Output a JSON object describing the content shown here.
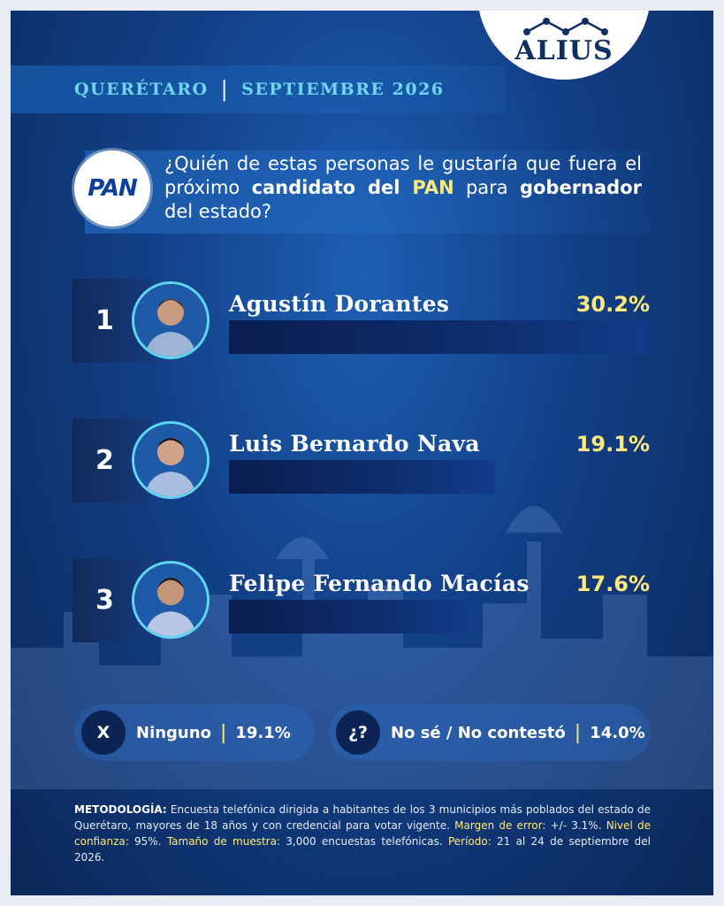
{
  "header": {
    "location": "QUERÉTARO",
    "separator": "|",
    "date": "SEPTIEMBRE 2026",
    "logo": "ALIUS"
  },
  "question": {
    "party_logo": "PAN",
    "part1": "¿Quién de estas personas le gustaría que fuera el próximo ",
    "bold1": "candidato del ",
    "highlight": "PAN",
    "part2": " para ",
    "bold2": "gobernador",
    "part3": " del estado?"
  },
  "chart_data": {
    "type": "bar",
    "categories": [
      "Agustín Dorantes",
      "Luis Bernardo Nava",
      "Felipe Fernando Macías"
    ],
    "ranks": [
      "1",
      "2",
      "3"
    ],
    "values": [
      30.2,
      19.1,
      17.6
    ],
    "value_labels": [
      "30.2%",
      "19.1%",
      "17.6%"
    ],
    "ylim": [
      0,
      30.2
    ]
  },
  "other_answers": [
    {
      "icon": "X",
      "label": "Ninguno",
      "separator": "|",
      "value": "19.1%"
    },
    {
      "icon": "¿?",
      "label": "No sé / No contestó",
      "separator": "|",
      "value": "14.0%"
    }
  ],
  "methodology": {
    "label_method": "METODOLOGÍA:",
    "text_method": " Encuesta telefónica dirigida a habitantes de los 3 municipios más poblados del estado de Querétaro, mayores de 18 años y con credencial para votar vigente. ",
    "label_margin": "Margen de error:",
    "text_margin": " +/- 3.1%. ",
    "label_confidence": "Nivel de confianza:",
    "text_confidence": " 95%. ",
    "label_sample": "Tamaño de muestra:",
    "text_sample": " 3,000 encuestas telefónicas. ",
    "label_period": "Período:",
    "text_period": " 21 al 24 de septiembre del 2026."
  },
  "colors": {
    "accent_yellow": "#ffe97a",
    "accent_cyan": "#6fd6f0",
    "background_blue": "#123f86",
    "bar_navy": "#0e2d6e"
  }
}
